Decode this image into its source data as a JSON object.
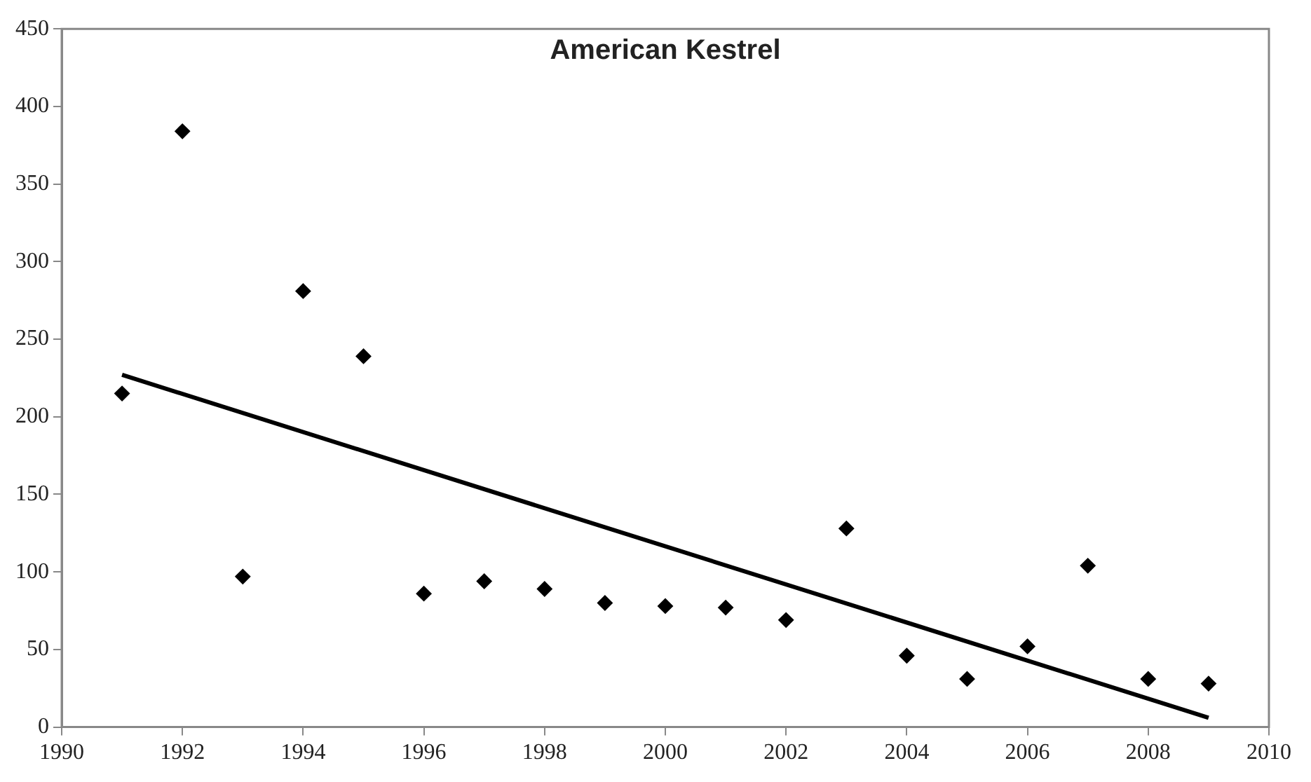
{
  "chart_data": {
    "type": "scatter",
    "title": "American Kestrel",
    "x": [
      1991,
      1992,
      1993,
      1994,
      1995,
      1996,
      1997,
      1998,
      1999,
      2000,
      2001,
      2002,
      2003,
      2004,
      2005,
      2006,
      2007,
      2008,
      2009
    ],
    "series": [
      {
        "type": "scatter",
        "color": "#000000",
        "marker": "diamond",
        "values": [
          215,
          384,
          97,
          281,
          239,
          86,
          94,
          89,
          80,
          78,
          77,
          69,
          128,
          46,
          31,
          52,
          104,
          31,
          28
        ]
      },
      {
        "type": "line",
        "color": "#000000",
        "marker": "none",
        "x": [
          1991,
          2009
        ],
        "values": [
          227,
          6
        ]
      }
    ],
    "xlim": [
      1990,
      2010
    ],
    "xticks": [
      1990,
      1992,
      1994,
      1996,
      1998,
      2000,
      2002,
      2004,
      2006,
      2008,
      2010
    ],
    "ylim": [
      0,
      450
    ],
    "yticks": [
      0,
      50,
      100,
      150,
      200,
      250,
      300,
      350,
      400,
      450
    ],
    "grid": false,
    "legend": false
  }
}
